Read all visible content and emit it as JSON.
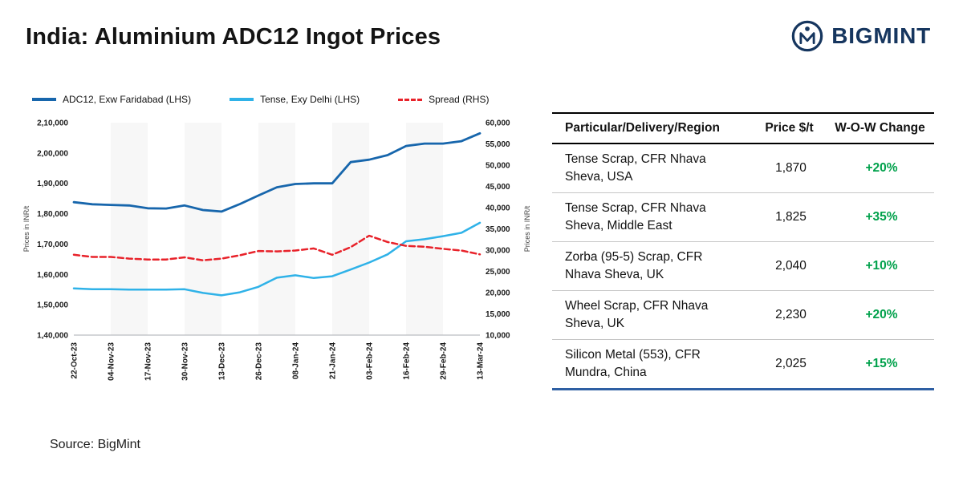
{
  "header": {
    "title": "India: Aluminium ADC12 Ingot Prices",
    "brand": "BIGMINT",
    "brand_color": "#16365f"
  },
  "chart_data": {
    "type": "line",
    "title": "India: Aluminium ADC12 Ingot Prices",
    "ylabel_left": "Prices in INR/t",
    "ylabel_right": "Prices in INR/t",
    "x_labels": [
      "22-Oct-23",
      "04-Nov-23",
      "17-Nov-23",
      "30-Nov-23",
      "13-Dec-23",
      "26-Dec-23",
      "08-Jan-24",
      "21-Jan-24",
      "03-Feb-24",
      "16-Feb-24",
      "29-Feb-24",
      "13-Mar-24"
    ],
    "left_axis": {
      "min": 140000,
      "max": 210000,
      "ticks": [
        "2,10,000",
        "2,00,000",
        "1,90,000",
        "1,80,000",
        "1,70,000",
        "1,60,000",
        "1,50,000",
        "1,40,000"
      ]
    },
    "right_axis": {
      "min": 10000,
      "max": 60000,
      "ticks": [
        "60,000",
        "55,000",
        "50,000",
        "45,000",
        "40,000",
        "35,000",
        "30,000",
        "25,000",
        "20,000",
        "15,000",
        "10,000"
      ]
    },
    "legend_position": "top",
    "grid": "off",
    "series": [
      {
        "id": "adc12",
        "name": "ADC12, Exw Faridabad (LHS)",
        "color": "#1766ac",
        "axis": "left",
        "dash": null,
        "values": [
          183800,
          183100,
          182900,
          182700,
          181800,
          181700,
          182700,
          181200,
          180700,
          183200,
          186000,
          188700,
          189800,
          190000,
          190000,
          197000,
          197800,
          199300,
          202300,
          203100,
          203100,
          203900,
          206500
        ]
      },
      {
        "id": "tense",
        "name": "Tense, Exy Delhi (LHS)",
        "color": "#2fb2e8",
        "axis": "left",
        "dash": null,
        "values": [
          155400,
          155100,
          155100,
          155000,
          155000,
          155000,
          155100,
          153900,
          153100,
          154100,
          155900,
          158900,
          159700,
          158800,
          159400,
          161600,
          163900,
          166600,
          170900,
          171600,
          172600,
          173700,
          177000
        ]
      },
      {
        "id": "spread",
        "name": "Spread (RHS)",
        "color": "#e8222a",
        "axis": "right",
        "dash": "7 4",
        "values": [
          28900,
          28400,
          28400,
          28000,
          27800,
          27800,
          28300,
          27600,
          28000,
          28800,
          29800,
          29700,
          29900,
          30400,
          28900,
          30700,
          33400,
          31900,
          31000,
          30800,
          30300,
          29900,
          29000
        ]
      }
    ]
  },
  "table": {
    "headers": [
      "Particular/Delivery/Region",
      "Price $/t",
      "W-O-W Change"
    ],
    "positive_color": "#00a14b",
    "bottom_border_color": "#2e5fa3",
    "rows": [
      {
        "line1": "Tense Scrap, CFR Nhava",
        "line2": "Sheva, USA",
        "price": "1,870",
        "change": "+20%"
      },
      {
        "line1": "Tense Scrap, CFR Nhava",
        "line2": "Sheva, Middle East",
        "price": "1,825",
        "change": "+35%"
      },
      {
        "line1": "Zorba (95-5) Scrap, CFR",
        "line2": "Nhava Sheva, UK",
        "price": "2,040",
        "change": "+10%"
      },
      {
        "line1": "Wheel Scrap, CFR Nhava",
        "line2": "Sheva, UK",
        "price": "2,230",
        "change": "+20%"
      },
      {
        "line1": "Silicon Metal (553), CFR",
        "line2": "Mundra, China",
        "price": "2,025",
        "change": "+15%"
      }
    ]
  },
  "footer": {
    "source": "Source: BigMint"
  }
}
